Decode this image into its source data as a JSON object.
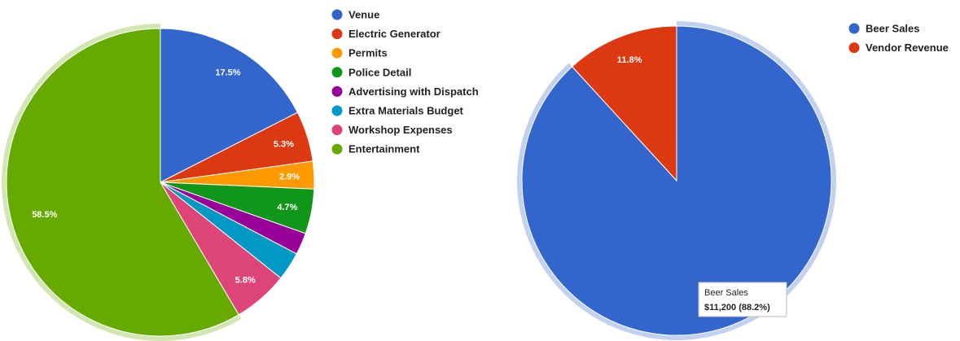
{
  "chart_data": [
    {
      "type": "pie",
      "categories": [
        "Venue",
        "Electric Generator",
        "Permits",
        "Police Detail",
        "Advertising with Dispatch",
        "Extra Materials Budget",
        "Workshop Expenses",
        "Entertainment"
      ],
      "values": [
        17.5,
        5.3,
        2.9,
        4.7,
        2.3,
        3.0,
        5.8,
        58.5
      ],
      "slice_labels": [
        "17.5%",
        "5.3%",
        "2.9%",
        "4.7%",
        "",
        "",
        "5.8%",
        "58.5%"
      ],
      "colors": [
        "#3366cc",
        "#dc3912",
        "#ff9900",
        "#109618",
        "#990099",
        "#0099c6",
        "#dd4477",
        "#66aa00"
      ],
      "highlighted": "Entertainment",
      "legend_position": "right"
    },
    {
      "type": "pie",
      "categories": [
        "Beer Sales",
        "Vendor Revenue"
      ],
      "values": [
        88.2,
        11.8
      ],
      "slice_labels": [
        "",
        "11.8%"
      ],
      "colors": [
        "#3366cc",
        "#dc3912"
      ],
      "highlighted": "Beer Sales",
      "legend_position": "right",
      "tooltip": {
        "name": "Beer Sales",
        "value": "$11,200 (88.2%)"
      }
    }
  ]
}
